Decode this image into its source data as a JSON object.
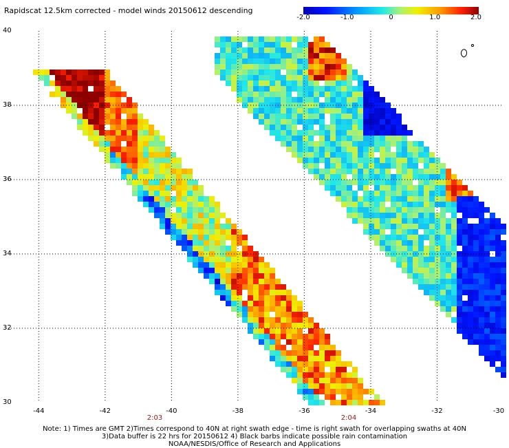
{
  "title": "Rapidscat 12.5km corrected - model winds 20150612 descending",
  "colorbar": {
    "ticks": [
      "-2.0",
      "-1.0",
      "0",
      "1.0",
      "2.0"
    ],
    "range": [
      -2.0,
      2.0
    ]
  },
  "map": {
    "lat_labels": [
      "40",
      "38",
      "36",
      "34",
      "32",
      "30"
    ],
    "lon_labels": [
      "-44",
      "-42",
      "-40",
      "-38",
      "-36",
      "-34",
      "-32",
      "-30"
    ],
    "time_labels": [
      "2:03",
      "2:04"
    ],
    "extent": {
      "lon": [
        -45,
        -30
      ],
      "lat": [
        30,
        40
      ]
    },
    "land_feature": "island outline near 39N 31W",
    "grid": true
  },
  "notes": {
    "line1": "Note: 1) Times are GMT 2)Times correspond to 40N at right swath edge - time is right swath for overlapping swaths at 40N",
    "line2": "3)Data buffer is 22 hrs for 20150612 4) Black barbs indicate possible rain contamination",
    "line3": "NOAA/NESDIS/Office of Research and Applications"
  },
  "colors": {
    "time_label": "#8b1a1a",
    "grid": "#000000"
  }
}
